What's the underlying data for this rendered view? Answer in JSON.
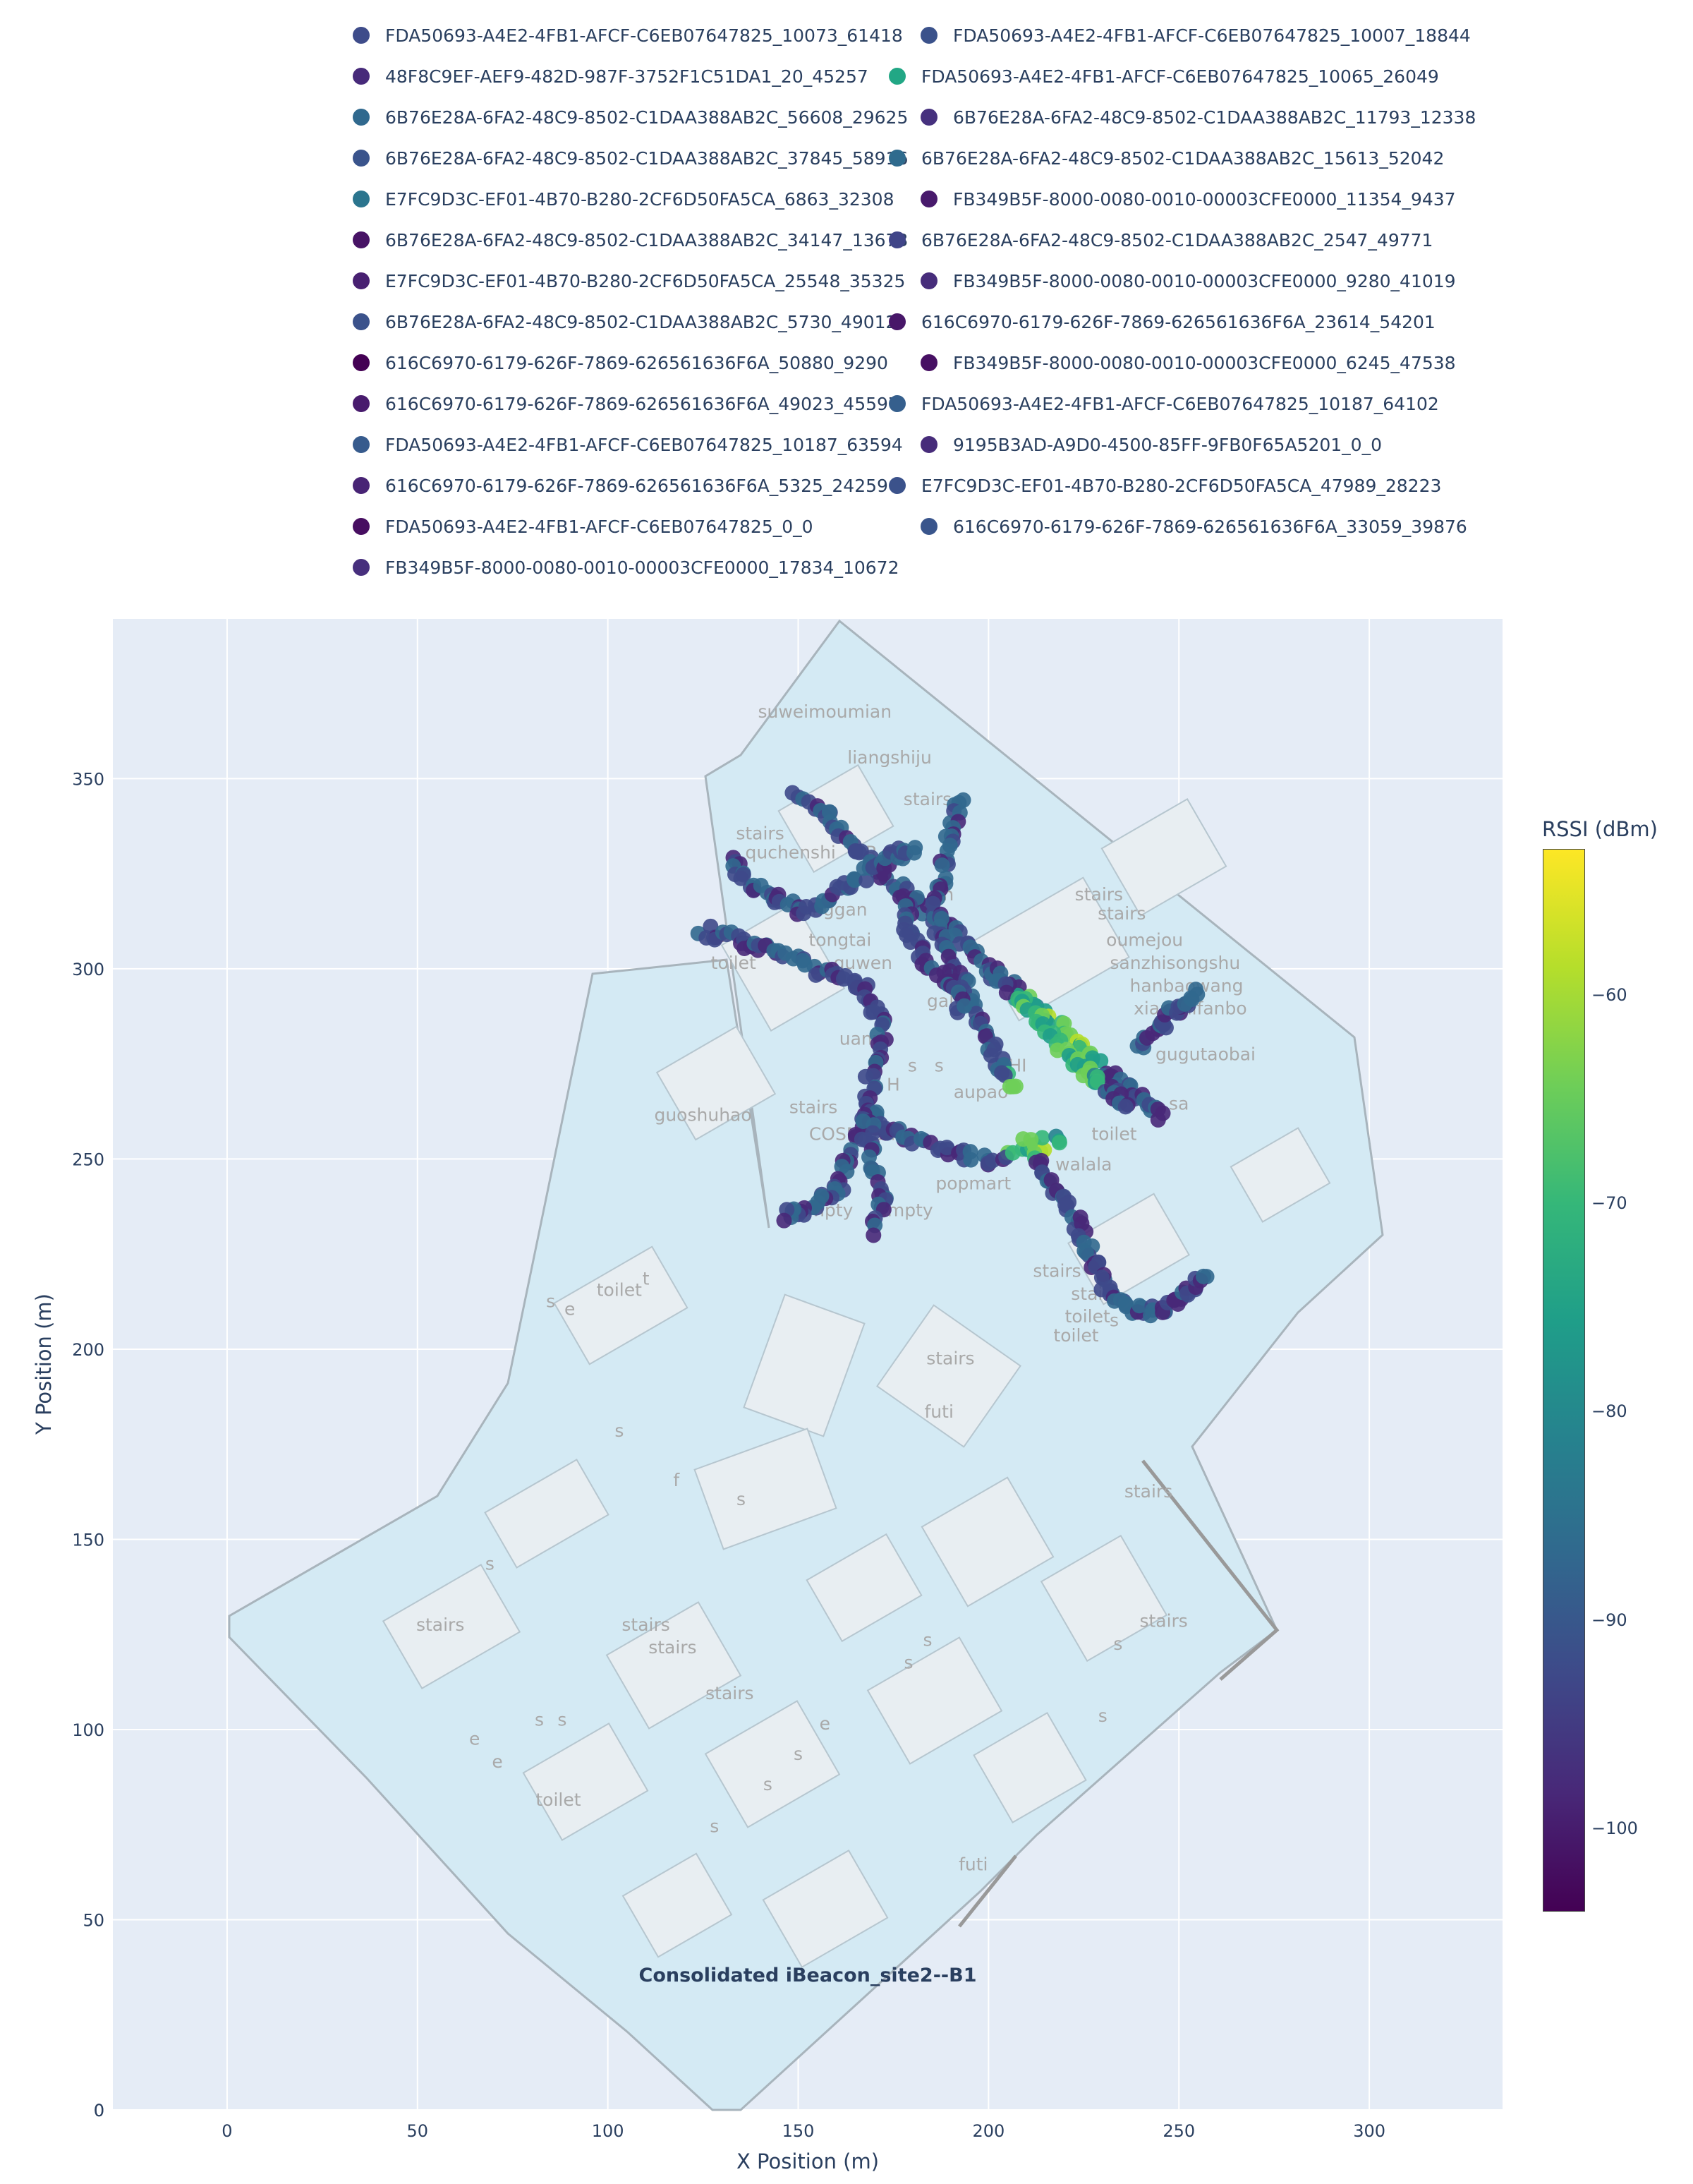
{
  "chart_data": {
    "type": "scatter",
    "title": "Consolidated iBeacon_site2--B1",
    "xlabel": "X Position (m)",
    "ylabel": "Y Position (m)",
    "xlim": [
      -30,
      335
    ],
    "ylim": [
      0,
      392
    ],
    "xticks": [
      0,
      50,
      100,
      150,
      200,
      250,
      300
    ],
    "yticks": [
      0,
      50,
      100,
      150,
      200,
      250,
      300,
      350
    ],
    "grid": true,
    "legend_position": "top",
    "colorbar": {
      "title": "RSSI (dBm)",
      "range": [
        -104,
        -53
      ],
      "ticks": [
        -60,
        -70,
        -80,
        -90,
        -100
      ],
      "colorscale": "viridis"
    },
    "series": [
      {
        "name": "FDA50693-A4E2-4FB1-AFCF-C6EB07647825_10073_61418",
        "color": "#3e4c8a"
      },
      {
        "name": "FDA50693-A4E2-4FB1-AFCF-C6EB07647825_10007_18844",
        "color": "#3b528b"
      },
      {
        "name": "48F8C9EF-AEF9-482D-987F-3752F1C51DA1_20_45257",
        "color": "#472a7a"
      },
      {
        "name": "FDA50693-A4E2-4FB1-AFCF-C6EB07647825_10065_26049",
        "color": "#22a785"
      },
      {
        "name": "6B76E28A-6FA2-48C9-8502-C1DAA388AB2C_56608_29625",
        "color": "#30698e"
      },
      {
        "name": "6B76E28A-6FA2-48C9-8502-C1DAA388AB2C_11793_12338",
        "color": "#46317e"
      },
      {
        "name": "6B76E28A-6FA2-48C9-8502-C1DAA388AB2C_37845_58916",
        "color": "#3a548c"
      },
      {
        "name": "6B76E28A-6FA2-48C9-8502-C1DAA388AB2C_15613_52042",
        "color": "#2f6b8e"
      },
      {
        "name": "E7FC9D3C-EF01-4B70-B280-2CF6D50FA5CA_6863_32308",
        "color": "#2b758e"
      },
      {
        "name": "FB349B5F-8000-0080-0010-00003CFE0000_11354_9437",
        "color": "#481a6c"
      },
      {
        "name": "6B76E28A-6FA2-48C9-8502-C1DAA388AB2C_34147_13673",
        "color": "#471365"
      },
      {
        "name": "6B76E28A-6FA2-48C9-8502-C1DAA388AB2C_2547_49771",
        "color": "#404588"
      },
      {
        "name": "E7FC9D3C-EF01-4B70-B280-2CF6D50FA5CA_25548_35325",
        "color": "#482071"
      },
      {
        "name": "FB349B5F-8000-0080-0010-00003CFE0000_9280_41019",
        "color": "#472d7b"
      },
      {
        "name": "6B76E28A-6FA2-48C9-8502-C1DAA388AB2C_5730_49012",
        "color": "#3b528b"
      },
      {
        "name": "616C6970-6179-626F-7869-626561636F6A_23614_54201",
        "color": "#481769"
      },
      {
        "name": "616C6970-6179-626F-7869-626561636F6A_50880_9290",
        "color": "#440154"
      },
      {
        "name": "FB349B5F-8000-0080-0010-00003CFE0000_6245_47538",
        "color": "#471063"
      },
      {
        "name": "616C6970-6179-626F-7869-626561636F6A_49023_45597",
        "color": "#481b6d"
      },
      {
        "name": "FDA50693-A4E2-4FB1-AFCF-C6EB07647825_10187_64102",
        "color": "#355f8d"
      },
      {
        "name": "FDA50693-A4E2-4FB1-AFCF-C6EB07647825_10187_63594",
        "color": "#375b8d"
      },
      {
        "name": "9195B3AD-A9D0-4500-85FF-9FB0F65A5201_0_0",
        "color": "#472c7a"
      },
      {
        "name": "616C6970-6179-626F-7869-626561636F6A_5325_24259",
        "color": "#482475"
      },
      {
        "name": "E7FC9D3C-EF01-4B70-B280-2CF6D50FA5CA_47989_28223",
        "color": "#3b528b"
      },
      {
        "name": "FDA50693-A4E2-4FB1-AFCF-C6EB07647825_0_0",
        "color": "#470e61"
      },
      {
        "name": "616C6970-6179-626F-7869-626561636F6A_33059_39876",
        "color": "#39558c"
      },
      {
        "name": "FB349B5F-8000-0080-0010-00003CFE0000_17834_10672",
        "color": "#472f7d"
      }
    ],
    "background_map_labels": [
      {
        "text": "suweimoumian",
        "x": 157,
        "y": 366
      },
      {
        "text": "liangshiju",
        "x": 174,
        "y": 354
      },
      {
        "text": "stairs",
        "x": 184,
        "y": 343
      },
      {
        "text": "stairs",
        "x": 140,
        "y": 334
      },
      {
        "text": "quchenshi",
        "x": 148,
        "y": 329
      },
      {
        "text": "ER S",
        "x": 170,
        "y": 329
      },
      {
        "text": "an",
        "x": 188,
        "y": 318
      },
      {
        "text": "stairs",
        "x": 229,
        "y": 318
      },
      {
        "text": "stairs",
        "x": 235,
        "y": 313
      },
      {
        "text": "ganggan",
        "x": 158,
        "y": 314
      },
      {
        "text": "toi",
        "x": 128,
        "y": 307
      },
      {
        "text": "tongtai",
        "x": 161,
        "y": 306
      },
      {
        "text": "oumejou",
        "x": 241,
        "y": 306
      },
      {
        "text": "toilet",
        "x": 133,
        "y": 300
      },
      {
        "text": "guwen",
        "x": 167,
        "y": 300
      },
      {
        "text": "sanzhisongshu",
        "x": 249,
        "y": 300
      },
      {
        "text": "hanbaowang",
        "x": 252,
        "y": 294
      },
      {
        "text": "gali",
        "x": 188,
        "y": 290
      },
      {
        "text": "xianchifanbo",
        "x": 253,
        "y": 288
      },
      {
        "text": "uanzi",
        "x": 167,
        "y": 280
      },
      {
        "text": "gugutaobai",
        "x": 257,
        "y": 276
      },
      {
        "text": "CHI",
        "x": 206,
        "y": 273
      },
      {
        "text": "H",
        "x": 175,
        "y": 268
      },
      {
        "text": "s",
        "x": 180,
        "y": 273
      },
      {
        "text": "s",
        "x": 187,
        "y": 273
      },
      {
        "text": "y",
        "x": 171,
        "y": 273
      },
      {
        "text": "aupao",
        "x": 198,
        "y": 266
      },
      {
        "text": "guoshuhao",
        "x": 125,
        "y": 260
      },
      {
        "text": "stairs",
        "x": 154,
        "y": 262
      },
      {
        "text": "sa",
        "x": 250,
        "y": 263
      },
      {
        "text": "COSMED",
        "x": 163,
        "y": 255
      },
      {
        "text": "toilet",
        "x": 233,
        "y": 255
      },
      {
        "text": "ka",
        "x": 177,
        "y": 255
      },
      {
        "text": "walala",
        "x": 225,
        "y": 247
      },
      {
        "text": "popmart",
        "x": 196,
        "y": 242
      },
      {
        "text": "empty",
        "x": 157,
        "y": 235
      },
      {
        "text": "empty",
        "x": 178,
        "y": 235
      },
      {
        "text": "stairs",
        "x": 218,
        "y": 219
      },
      {
        "text": "stairs",
        "x": 228,
        "y": 213
      },
      {
        "text": "toilet",
        "x": 226,
        "y": 207
      },
      {
        "text": "toilet",
        "x": 223,
        "y": 202
      },
      {
        "text": "s",
        "x": 233,
        "y": 206
      },
      {
        "text": "toilet",
        "x": 103,
        "y": 214
      },
      {
        "text": "t",
        "x": 110,
        "y": 217
      },
      {
        "text": "s",
        "x": 85,
        "y": 211
      },
      {
        "text": "e",
        "x": 90,
        "y": 209
      },
      {
        "text": "stairs",
        "x": 190,
        "y": 196
      },
      {
        "text": "futi",
        "x": 187,
        "y": 182
      },
      {
        "text": "stairs",
        "x": 242,
        "y": 161
      },
      {
        "text": "s",
        "x": 103,
        "y": 177
      },
      {
        "text": "f",
        "x": 118,
        "y": 164
      },
      {
        "text": "s",
        "x": 135,
        "y": 159
      },
      {
        "text": "s",
        "x": 69,
        "y": 142
      },
      {
        "text": "stairs",
        "x": 56,
        "y": 126
      },
      {
        "text": "stairs",
        "x": 110,
        "y": 126
      },
      {
        "text": "stairs",
        "x": 117,
        "y": 120
      },
      {
        "text": "stairs",
        "x": 246,
        "y": 127
      },
      {
        "text": "s",
        "x": 184,
        "y": 122
      },
      {
        "text": "s",
        "x": 179,
        "y": 116
      },
      {
        "text": "s",
        "x": 234,
        "y": 121
      },
      {
        "text": "stairs",
        "x": 132,
        "y": 108
      },
      {
        "text": "s",
        "x": 82,
        "y": 101
      },
      {
        "text": "s",
        "x": 88,
        "y": 101
      },
      {
        "text": "e",
        "x": 157,
        "y": 100
      },
      {
        "text": "s",
        "x": 230,
        "y": 102
      },
      {
        "text": "e",
        "x": 65,
        "y": 96
      },
      {
        "text": "e",
        "x": 71,
        "y": 90
      },
      {
        "text": "s",
        "x": 150,
        "y": 92
      },
      {
        "text": "s",
        "x": 142,
        "y": 84
      },
      {
        "text": "toilet",
        "x": 87,
        "y": 80
      },
      {
        "text": "s",
        "x": 128,
        "y": 73
      },
      {
        "text": "futi",
        "x": 196,
        "y": 63
      }
    ],
    "annotations": [
      {
        "text": "Consolidated iBeacon_site2--B1",
        "x": 152,
        "y": 35
      }
    ]
  }
}
